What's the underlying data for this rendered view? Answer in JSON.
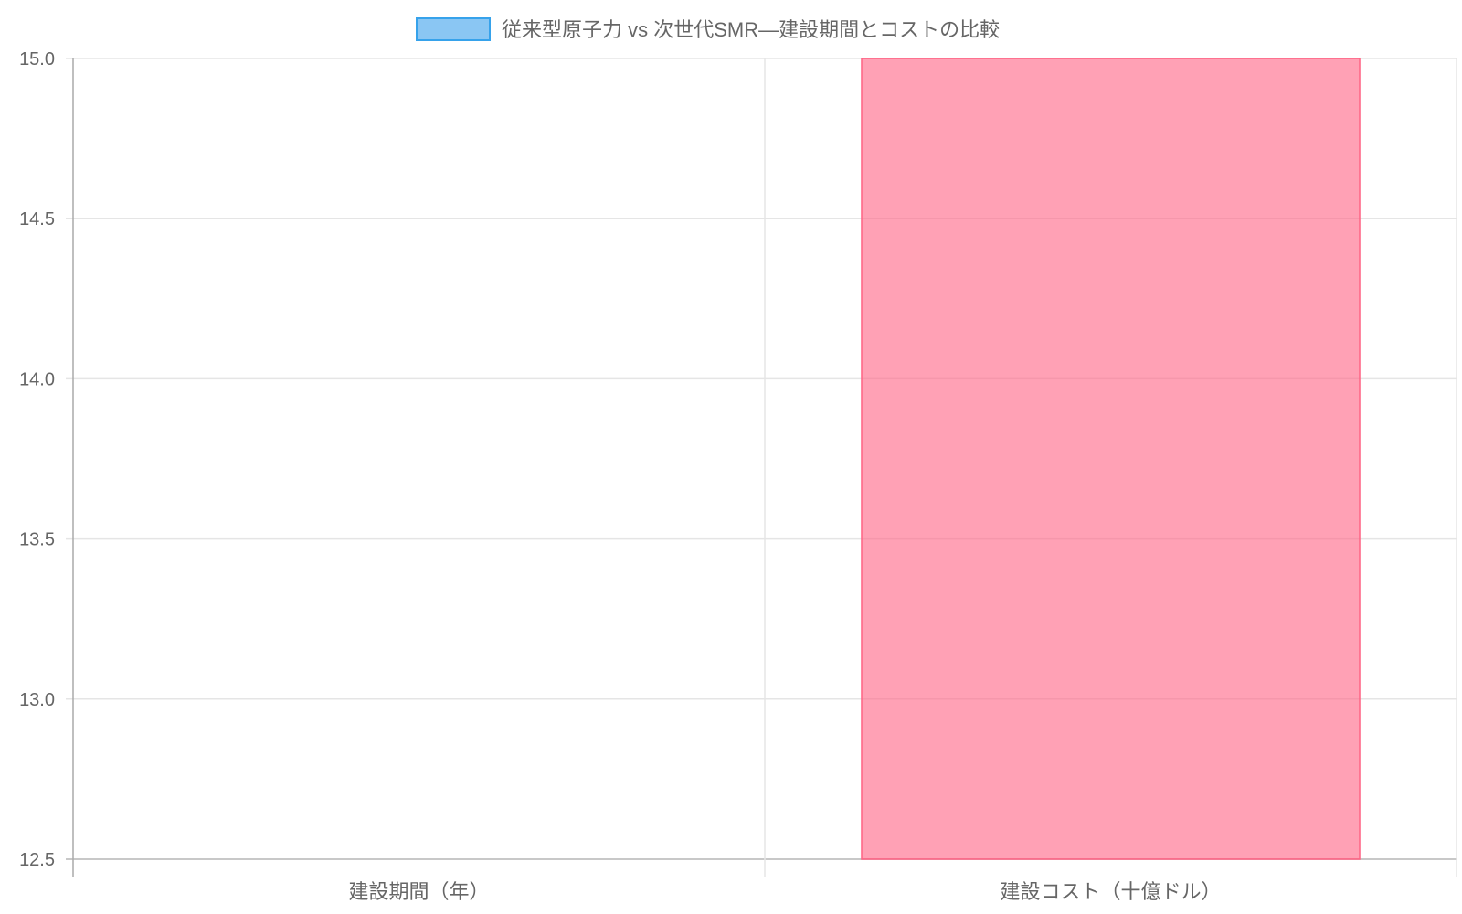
{
  "chart_data": {
    "type": "bar",
    "categories": [
      "建設期間（年）",
      "建設コスト（十億ドル）"
    ],
    "series": [
      {
        "name": "従来型原子力 vs 次世代SMR—建設期間とコストの比較",
        "values": [
          null,
          15.0
        ],
        "legend_color": "#8ac6f3",
        "legend_border": "#36a2eb",
        "bar_color": "rgba(255,99,132,0.6)",
        "bar_border": "#ff6384"
      }
    ],
    "ylim": [
      12.5,
      15.0
    ],
    "yticks": [
      "15.0",
      "14.5",
      "14.0",
      "13.5",
      "13.0",
      "12.5"
    ],
    "grid": true,
    "legend_position": "top",
    "title": "",
    "xlabel": "",
    "ylabel": ""
  }
}
